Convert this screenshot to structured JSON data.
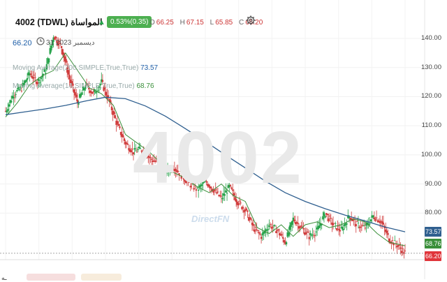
{
  "header": {
    "title": "4002  (TDWL)  المواساة",
    "change_badge": "0.53%(0.35)",
    "ohlc": {
      "o_label": "O",
      "o_value": "66.25",
      "h_label": "H",
      "h_value": "67.15",
      "l_label": "L",
      "l_value": "65.85",
      "c_label": "C",
      "c_value": "66.20"
    }
  },
  "subheader": {
    "price": "66.20",
    "date": "31 2023 ديسمبر"
  },
  "indicators": [
    {
      "label": "Moving Average(200,SIMPLE,True,True)",
      "value": "73.57"
    },
    {
      "label": "Moving Average(14,SIMPLE,True,True)",
      "value": "68.76"
    }
  ],
  "watermark": {
    "symbol": "4002",
    "brand": "DirectFN"
  },
  "axis": {
    "ticks": [
      "140.00",
      "130.00",
      "120.00",
      "110.00",
      "100.00",
      "90.00",
      "80.00"
    ]
  },
  "price_tags": {
    "ma200": "73.57",
    "ma14": "68.76",
    "last": "66.20"
  },
  "colors": {
    "up": "#26a24a",
    "down": "#d03c3c",
    "ma200": "#2f5f8f",
    "ma14": "#3a8f3a",
    "last": "#e0353b",
    "badge": "#4caf50"
  },
  "chart_data": {
    "type": "line",
    "ylim": [
      64,
      146
    ],
    "series": [
      {
        "name": "Moving Average(200,SIMPLE,True,True)",
        "x": [
          0,
          5,
          10,
          15,
          20,
          25,
          30,
          35,
          40,
          45,
          50,
          55,
          60,
          65,
          70,
          75,
          80,
          85,
          90,
          95,
          100
        ],
        "values": [
          113.8,
          114.8,
          115.8,
          117.0,
          118.5,
          119.8,
          119.3,
          116.8,
          113.3,
          109.0,
          104.6,
          100.0,
          95.5,
          91.0,
          87.0,
          84.0,
          81.5,
          79.3,
          77.3,
          75.2,
          73.57
        ]
      },
      {
        "name": "Moving Average(14,SIMPLE,True,True)",
        "x": [
          0,
          3,
          6,
          9,
          12,
          15,
          18,
          21,
          24,
          27,
          30,
          33,
          36,
          39,
          42,
          45,
          48,
          51,
          54,
          57,
          60,
          63,
          66,
          69,
          72,
          75,
          78,
          81,
          84,
          87,
          90,
          93,
          96,
          100
        ],
        "values": [
          113,
          118,
          124,
          127,
          129,
          135,
          129,
          123,
          121,
          117,
          107,
          104,
          101,
          97,
          94,
          92,
          89,
          87,
          90,
          86,
          84,
          75,
          73,
          76,
          72,
          76,
          77,
          75,
          76,
          78,
          77,
          73,
          70,
          68.76
        ]
      },
      {
        "name": "",
        "x": [
          0,
          2,
          4,
          6,
          8,
          10,
          12,
          14,
          16,
          18,
          20,
          22,
          24,
          26,
          28,
          30,
          32,
          34,
          36,
          38,
          40,
          42,
          44,
          46,
          48,
          50,
          52,
          54,
          56,
          58,
          60,
          62,
          64,
          66,
          68,
          70,
          72,
          74,
          76,
          78,
          80,
          82,
          84,
          86,
          88,
          90,
          92,
          94,
          96,
          98,
          100
        ],
        "values": [
          115,
          121,
          123,
          128,
          125,
          129,
          141,
          137,
          126,
          118,
          124,
          121,
          125,
          118,
          110,
          104,
          101,
          102,
          99,
          97,
          94,
          96,
          93,
          90,
          88,
          91,
          88,
          85,
          89,
          84,
          81,
          75,
          72,
          76,
          74,
          70,
          78,
          75,
          72,
          74,
          80,
          76,
          74,
          79,
          76,
          75,
          79,
          77,
          71,
          69,
          66.2
        ]
      }
    ]
  }
}
